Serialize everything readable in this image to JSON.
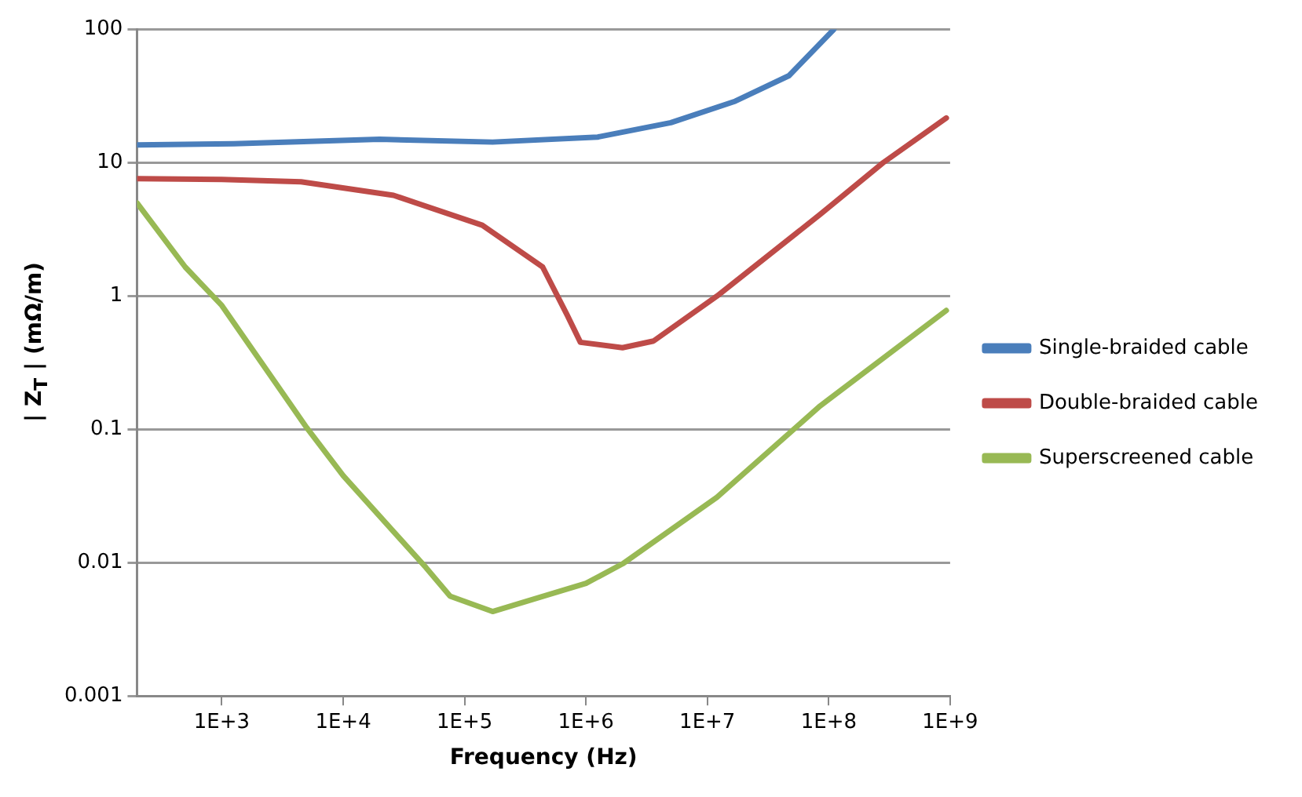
{
  "chart_data": {
    "type": "line",
    "xlabel": "Frequency (Hz)",
    "ylabel": "| Z$_{T}$ | (mΩ/m)",
    "log": "xy",
    "grid": "y",
    "legend": "right",
    "marker": "none",
    "line_style": "solid",
    "xlim": [
      200,
      1000000000
    ],
    "xticks": [
      {
        "value": 1000,
        "label": "1E+3"
      },
      {
        "value": 10000,
        "label": "1E+4"
      },
      {
        "value": 100000,
        "label": "1E+5"
      },
      {
        "value": 1000000,
        "label": "1E+6"
      },
      {
        "value": 10000000,
        "label": "1E+7"
      },
      {
        "value": 100000000,
        "label": "1E+8"
      },
      {
        "value": 1000000000,
        "label": "1E+9"
      }
    ],
    "ylim": [
      0.001,
      100
    ],
    "yticks": [
      0.001,
      0.01,
      0.1,
      1,
      10,
      100
    ],
    "series": [
      {
        "name": "Single-braided cable",
        "color": "#4a7ebb",
        "x": [
          200,
          1250,
          20000,
          170000,
          1250000,
          5000000,
          17000000,
          47000000,
          110000000
        ],
        "values": [
          13.6,
          13.9,
          15,
          14.3,
          15.6,
          20,
          29,
          45,
          100
        ]
      },
      {
        "name": "Double-braided cable",
        "color": "#be4b48",
        "x": [
          200,
          1000,
          4500,
          26000,
          140000,
          440000,
          700000,
          900000,
          2000000,
          3600000,
          12000000,
          85000000,
          280000000,
          930000000
        ],
        "values": [
          7.6,
          7.5,
          7.2,
          5.7,
          3.4,
          1.65,
          0.72,
          0.45,
          0.41,
          0.46,
          1,
          4.1,
          10,
          21.7
        ]
      },
      {
        "name": "Superscreened cable",
        "color": "#98b954",
        "x": [
          200,
          500,
          1000,
          5000,
          10000,
          48000,
          76000,
          170000,
          1000000,
          2000000,
          12000000,
          85000000,
          930000000
        ],
        "values": [
          5,
          1.65,
          0.85,
          0.103,
          0.045,
          0.0092,
          0.0056,
          0.0043,
          0.007,
          0.0098,
          0.031,
          0.15,
          0.78
        ]
      }
    ]
  }
}
